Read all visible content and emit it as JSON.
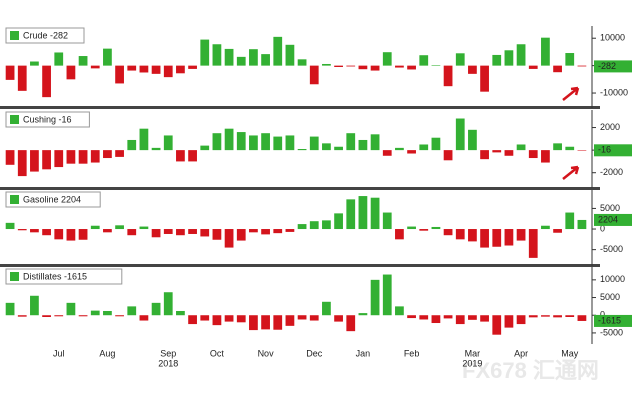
{
  "chart_data": [
    {
      "type": "bar",
      "name": "Crude -282",
      "positive_color": "#33b033",
      "negative_color": "#d4141c",
      "values": [
        -5200,
        -9200,
        1500,
        -11500,
        4800,
        -5000,
        3500,
        -1000,
        6200,
        -6500,
        -1800,
        -2500,
        -3000,
        -4200,
        -2800,
        -1200,
        9500,
        7800,
        6100,
        3200,
        6000,
        4200,
        10500,
        7600,
        2300,
        -6800,
        600,
        -500,
        -300,
        -1300,
        -1800,
        4900,
        -700,
        -1400,
        3800,
        200,
        -7500,
        4500,
        -3000,
        -9500,
        3900,
        5600,
        7800,
        -1200,
        10200,
        -2400,
        4600,
        -282
      ],
      "ylim": [
        -14000,
        13000
      ],
      "yticks": [
        10000,
        0,
        -10000
      ]
    },
    {
      "type": "bar",
      "name": "Cushing -16",
      "positive_color": "#33b033",
      "negative_color": "#d4141c",
      "values": [
        -1300,
        -2300,
        -1900,
        -1700,
        -1500,
        -1200,
        -1200,
        -1100,
        -700,
        -600,
        900,
        1900,
        200,
        1300,
        -1000,
        -1000,
        400,
        1500,
        1900,
        1600,
        1300,
        1500,
        1200,
        1300,
        100,
        1200,
        600,
        300,
        1500,
        900,
        1400,
        -500,
        200,
        -300,
        500,
        1100,
        -900,
        2800,
        1800,
        -800,
        -200,
        -500,
        500,
        -700,
        -1100,
        600,
        300,
        -16
      ],
      "ylim": [
        -3000,
        3200
      ],
      "yticks": [
        2000,
        0,
        -2000
      ]
    },
    {
      "type": "bar",
      "name": "Gasoline 2204",
      "positive_color": "#33b033",
      "negative_color": "#d4141c",
      "values": [
        1500,
        -300,
        -800,
        -1500,
        -2500,
        -2800,
        -2600,
        800,
        -800,
        900,
        -1500,
        600,
        -2000,
        -1200,
        -1500,
        -1200,
        -1800,
        -2600,
        -4500,
        -2800,
        -800,
        -1300,
        -1000,
        -700,
        1200,
        1900,
        2100,
        3800,
        7200,
        8000,
        7600,
        4000,
        -2500,
        600,
        -400,
        500,
        -1500,
        -2500,
        -3000,
        -4500,
        -4300,
        -4000,
        -2800,
        -7000,
        800,
        -900,
        4000,
        2204
      ],
      "ylim": [
        -8000,
        8500
      ],
      "yticks": [
        5000,
        0,
        -5000
      ]
    },
    {
      "type": "bar",
      "name": "Distillates -1615",
      "positive_color": "#33b033",
      "negative_color": "#d4141c",
      "values": [
        3500,
        -400,
        5500,
        -500,
        -300,
        3500,
        -300,
        1300,
        1200,
        -300,
        2500,
        -1500,
        3500,
        6500,
        1200,
        -2500,
        -1500,
        -2800,
        -1800,
        -2000,
        -4200,
        -4000,
        -4100,
        -3000,
        -1200,
        -1500,
        3800,
        -1800,
        -4500,
        600,
        10000,
        11500,
        2500,
        -800,
        -1200,
        -2200,
        -900,
        -2500,
        -1300,
        -1800,
        -5500,
        -3500,
        -2500,
        -600,
        -400,
        -600,
        -500,
        -1615
      ],
      "ylim": [
        -7000,
        12500
      ],
      "yticks": [
        10000,
        5000,
        0,
        -5000
      ],
      "categories": [
        null,
        null,
        null,
        null,
        "Jul",
        null,
        null,
        null,
        "Aug",
        null,
        null,
        null,
        null,
        "Sep",
        null,
        null,
        null,
        "Oct",
        null,
        null,
        null,
        "Nov",
        null,
        null,
        null,
        "Dec",
        null,
        null,
        null,
        "Jan",
        null,
        null,
        null,
        "Feb",
        null,
        null,
        null,
        null,
        "Mar",
        null,
        null,
        null,
        "Apr",
        null,
        null,
        null,
        "May",
        null
      ],
      "year_categories": [
        null,
        null,
        null,
        null,
        null,
        null,
        null,
        null,
        null,
        null,
        null,
        null,
        null,
        "2018",
        null,
        null,
        null,
        null,
        null,
        null,
        null,
        null,
        null,
        null,
        null,
        null,
        null,
        null,
        null,
        null,
        null,
        null,
        null,
        null,
        null,
        null,
        null,
        null,
        "2019",
        null,
        null,
        null,
        null,
        null,
        null,
        null,
        null,
        null
      ]
    }
  ],
  "watermark": "FX678 汇通网"
}
